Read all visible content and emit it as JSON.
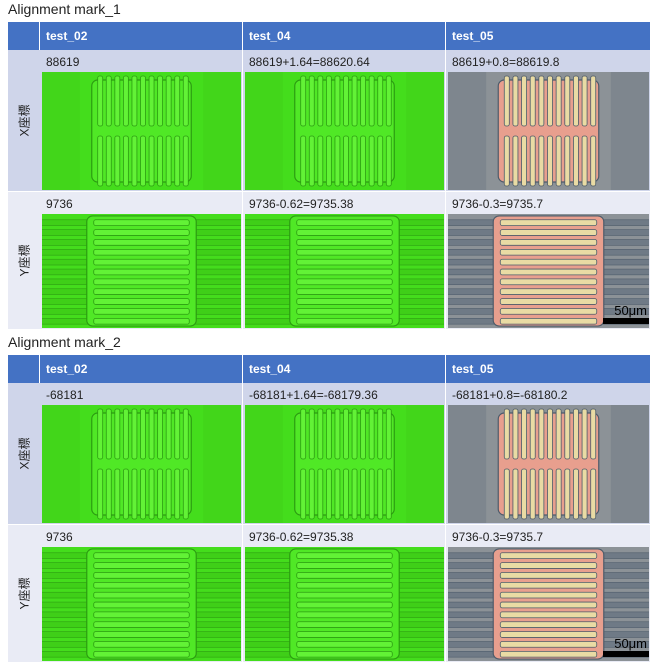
{
  "sections": [
    {
      "title": "Alignment mark_1",
      "columns": [
        "test_02",
        "test_04",
        "test_05"
      ],
      "rows": [
        {
          "label": "X座標",
          "cells": [
            "88619",
            "88619+1.64=88620.64",
            "88619+0.8=88619.8"
          ]
        },
        {
          "label": "Y座標",
          "cells": [
            "9736",
            "9736-0.62=9735.38",
            "9736-0.3=9735.7"
          ]
        }
      ],
      "scale_label": "50μm"
    },
    {
      "title": "Alignment mark_2",
      "columns": [
        "test_02",
        "test_04",
        "test_05"
      ],
      "rows": [
        {
          "label": "X座標",
          "cells": [
            "-68181",
            "-68181+1.64=-68179.36",
            "-68181+0.8=-68180.2"
          ]
        },
        {
          "label": "Y座標",
          "cells": [
            "9736",
            "9736-0.62=9735.38",
            "9736-0.3=9735.7"
          ]
        }
      ],
      "scale_label": "50μm"
    }
  ]
}
